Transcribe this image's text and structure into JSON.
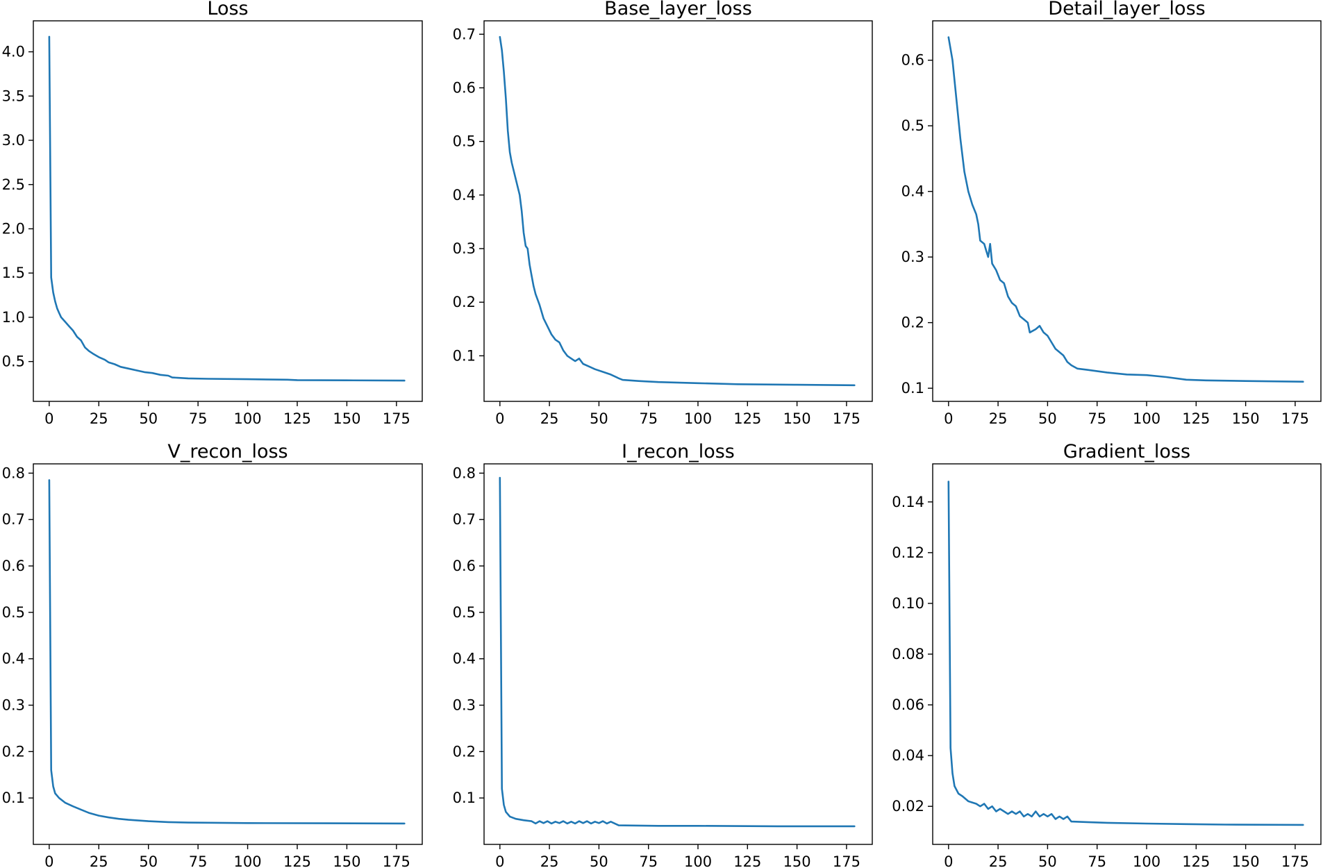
{
  "colors": {
    "line": "#1f77b4",
    "axes": "#000000",
    "background": "#ffffff"
  },
  "chart_data": [
    {
      "type": "line",
      "title": "Loss",
      "xlabel": "",
      "ylabel": "",
      "xlim": [
        -8,
        188
      ],
      "ylim": [
        0.05,
        4.35
      ],
      "xticks": [
        0,
        25,
        50,
        75,
        100,
        125,
        150,
        175
      ],
      "yticks": [
        0.5,
        1.0,
        1.5,
        2.0,
        2.5,
        3.0,
        3.5,
        4.0
      ],
      "ytick_labels": [
        "0.5",
        "1.0",
        "1.5",
        "2.0",
        "2.5",
        "3.0",
        "3.5",
        "4.0"
      ],
      "series": [
        {
          "name": "Loss",
          "points": [
            [
              0,
              4.17
            ],
            [
              1,
              1.45
            ],
            [
              2,
              1.28
            ],
            [
              3,
              1.18
            ],
            [
              4,
              1.1
            ],
            [
              5,
              1.05
            ],
            [
              6,
              1.0
            ],
            [
              8,
              0.95
            ],
            [
              10,
              0.9
            ],
            [
              12,
              0.85
            ],
            [
              14,
              0.78
            ],
            [
              16,
              0.74
            ],
            [
              18,
              0.66
            ],
            [
              20,
              0.62
            ],
            [
              22,
              0.59
            ],
            [
              25,
              0.55
            ],
            [
              28,
              0.52
            ],
            [
              30,
              0.49
            ],
            [
              33,
              0.47
            ],
            [
              36,
              0.44
            ],
            [
              40,
              0.42
            ],
            [
              44,
              0.4
            ],
            [
              48,
              0.38
            ],
            [
              52,
              0.37
            ],
            [
              56,
              0.35
            ],
            [
              60,
              0.34
            ],
            [
              62,
              0.32
            ],
            [
              70,
              0.31
            ],
            [
              80,
              0.305
            ],
            [
              100,
              0.3
            ],
            [
              120,
              0.295
            ],
            [
              125,
              0.29
            ],
            [
              150,
              0.288
            ],
            [
              179,
              0.285
            ]
          ]
        }
      ]
    },
    {
      "type": "line",
      "title": "Base_layer_loss",
      "xlabel": "",
      "ylabel": "",
      "xlim": [
        -8,
        188
      ],
      "ylim": [
        0.015,
        0.725
      ],
      "xticks": [
        0,
        25,
        50,
        75,
        100,
        125,
        150,
        175
      ],
      "yticks": [
        0.1,
        0.2,
        0.3,
        0.4,
        0.5,
        0.6,
        0.7
      ],
      "ytick_labels": [
        "0.1",
        "0.2",
        "0.3",
        "0.4",
        "0.5",
        "0.6",
        "0.7"
      ],
      "series": [
        {
          "name": "Base_layer_loss",
          "points": [
            [
              0,
              0.695
            ],
            [
              1,
              0.67
            ],
            [
              2,
              0.63
            ],
            [
              3,
              0.58
            ],
            [
              4,
              0.52
            ],
            [
              5,
              0.48
            ],
            [
              6,
              0.46
            ],
            [
              8,
              0.43
            ],
            [
              10,
              0.4
            ],
            [
              11,
              0.37
            ],
            [
              12,
              0.33
            ],
            [
              13,
              0.305
            ],
            [
              14,
              0.3
            ],
            [
              15,
              0.27
            ],
            [
              16,
              0.25
            ],
            [
              17,
              0.23
            ],
            [
              18,
              0.215
            ],
            [
              20,
              0.195
            ],
            [
              22,
              0.17
            ],
            [
              24,
              0.155
            ],
            [
              26,
              0.14
            ],
            [
              28,
              0.13
            ],
            [
              30,
              0.125
            ],
            [
              32,
              0.11
            ],
            [
              34,
              0.1
            ],
            [
              36,
              0.095
            ],
            [
              38,
              0.09
            ],
            [
              40,
              0.095
            ],
            [
              42,
              0.085
            ],
            [
              45,
              0.08
            ],
            [
              48,
              0.075
            ],
            [
              52,
              0.07
            ],
            [
              56,
              0.065
            ],
            [
              60,
              0.058
            ],
            [
              62,
              0.055
            ],
            [
              70,
              0.053
            ],
            [
              80,
              0.051
            ],
            [
              100,
              0.049
            ],
            [
              120,
              0.047
            ],
            [
              150,
              0.046
            ],
            [
              179,
              0.045
            ]
          ]
        }
      ]
    },
    {
      "type": "line",
      "title": "Detail_layer_loss",
      "xlabel": "",
      "ylabel": "",
      "xlim": [
        -8,
        188
      ],
      "ylim": [
        0.08,
        0.66
      ],
      "xticks": [
        0,
        25,
        50,
        75,
        100,
        125,
        150,
        175
      ],
      "yticks": [
        0.1,
        0.2,
        0.3,
        0.4,
        0.5,
        0.6
      ],
      "ytick_labels": [
        "0.1",
        "0.2",
        "0.3",
        "0.4",
        "0.5",
        "0.6"
      ],
      "series": [
        {
          "name": "Detail_layer_loss",
          "points": [
            [
              0,
              0.635
            ],
            [
              2,
              0.6
            ],
            [
              4,
              0.54
            ],
            [
              6,
              0.48
            ],
            [
              8,
              0.43
            ],
            [
              10,
              0.4
            ],
            [
              12,
              0.38
            ],
            [
              14,
              0.365
            ],
            [
              15,
              0.35
            ],
            [
              16,
              0.325
            ],
            [
              18,
              0.32
            ],
            [
              19,
              0.31
            ],
            [
              20,
              0.3
            ],
            [
              21,
              0.32
            ],
            [
              22,
              0.29
            ],
            [
              24,
              0.28
            ],
            [
              26,
              0.265
            ],
            [
              28,
              0.26
            ],
            [
              30,
              0.24
            ],
            [
              32,
              0.23
            ],
            [
              34,
              0.225
            ],
            [
              36,
              0.21
            ],
            [
              38,
              0.205
            ],
            [
              40,
              0.2
            ],
            [
              41,
              0.185
            ],
            [
              44,
              0.19
            ],
            [
              46,
              0.195
            ],
            [
              48,
              0.185
            ],
            [
              50,
              0.18
            ],
            [
              52,
              0.17
            ],
            [
              54,
              0.16
            ],
            [
              56,
              0.155
            ],
            [
              58,
              0.15
            ],
            [
              60,
              0.14
            ],
            [
              62,
              0.135
            ],
            [
              65,
              0.13
            ],
            [
              70,
              0.128
            ],
            [
              80,
              0.124
            ],
            [
              90,
              0.121
            ],
            [
              100,
              0.12
            ],
            [
              110,
              0.117
            ],
            [
              120,
              0.113
            ],
            [
              130,
              0.112
            ],
            [
              150,
              0.111
            ],
            [
              179,
              0.11
            ]
          ]
        }
      ]
    },
    {
      "type": "line",
      "title": "V_recon_loss",
      "xlabel": "",
      "ylabel": "",
      "xlim": [
        -8,
        188
      ],
      "ylim": [
        0.0,
        0.82
      ],
      "xticks": [
        0,
        25,
        50,
        75,
        100,
        125,
        150,
        175
      ],
      "yticks": [
        0.1,
        0.2,
        0.3,
        0.4,
        0.5,
        0.6,
        0.7,
        0.8
      ],
      "ytick_labels": [
        "0.1",
        "0.2",
        "0.3",
        "0.4",
        "0.5",
        "0.6",
        "0.7",
        "0.8"
      ],
      "series": [
        {
          "name": "V_recon_loss",
          "points": [
            [
              0,
              0.785
            ],
            [
              1,
              0.16
            ],
            [
              2,
              0.125
            ],
            [
              3,
              0.11
            ],
            [
              5,
              0.1
            ],
            [
              8,
              0.09
            ],
            [
              12,
              0.082
            ],
            [
              16,
              0.075
            ],
            [
              20,
              0.068
            ],
            [
              25,
              0.062
            ],
            [
              30,
              0.058
            ],
            [
              35,
              0.055
            ],
            [
              40,
              0.053
            ],
            [
              50,
              0.05
            ],
            [
              60,
              0.048
            ],
            [
              70,
              0.047
            ],
            [
              100,
              0.046
            ],
            [
              140,
              0.0455
            ],
            [
              179,
              0.045
            ]
          ]
        }
      ]
    },
    {
      "type": "line",
      "title": "I_recon_loss",
      "xlabel": "",
      "ylabel": "",
      "xlim": [
        -8,
        188
      ],
      "ylim": [
        0.0,
        0.82
      ],
      "xticks": [
        0,
        25,
        50,
        75,
        100,
        125,
        150,
        175
      ],
      "yticks": [
        0.1,
        0.2,
        0.3,
        0.4,
        0.5,
        0.6,
        0.7,
        0.8
      ],
      "ytick_labels": [
        "0.1",
        "0.2",
        "0.3",
        "0.4",
        "0.5",
        "0.6",
        "0.7",
        "0.8"
      ],
      "series": [
        {
          "name": "I_recon_loss",
          "points": [
            [
              0,
              0.79
            ],
            [
              1,
              0.12
            ],
            [
              2,
              0.085
            ],
            [
              3,
              0.07
            ],
            [
              5,
              0.06
            ],
            [
              8,
              0.055
            ],
            [
              12,
              0.052
            ],
            [
              16,
              0.05
            ],
            [
              18,
              0.045
            ],
            [
              20,
              0.05
            ],
            [
              22,
              0.046
            ],
            [
              24,
              0.05
            ],
            [
              26,
              0.045
            ],
            [
              28,
              0.049
            ],
            [
              30,
              0.046
            ],
            [
              32,
              0.05
            ],
            [
              34,
              0.045
            ],
            [
              36,
              0.049
            ],
            [
              38,
              0.045
            ],
            [
              40,
              0.05
            ],
            [
              42,
              0.046
            ],
            [
              44,
              0.05
            ],
            [
              46,
              0.045
            ],
            [
              48,
              0.049
            ],
            [
              50,
              0.046
            ],
            [
              52,
              0.05
            ],
            [
              54,
              0.045
            ],
            [
              56,
              0.049
            ],
            [
              58,
              0.045
            ],
            [
              60,
              0.041
            ],
            [
              80,
              0.04
            ],
            [
              100,
              0.04
            ],
            [
              140,
              0.039
            ],
            [
              179,
              0.039
            ]
          ]
        }
      ]
    },
    {
      "type": "line",
      "title": "Gradient_loss",
      "xlabel": "",
      "ylabel": "",
      "xlim": [
        -8,
        188
      ],
      "ylim": [
        0.005,
        0.155
      ],
      "xticks": [
        0,
        25,
        50,
        75,
        100,
        125,
        150,
        175
      ],
      "yticks": [
        0.02,
        0.04,
        0.06,
        0.08,
        0.1,
        0.12,
        0.14
      ],
      "ytick_labels": [
        "0.02",
        "0.04",
        "0.06",
        "0.08",
        "0.10",
        "0.12",
        "0.14"
      ],
      "series": [
        {
          "name": "Gradient_loss",
          "points": [
            [
              0,
              0.148
            ],
            [
              1,
              0.043
            ],
            [
              2,
              0.033
            ],
            [
              3,
              0.028
            ],
            [
              5,
              0.025
            ],
            [
              7,
              0.024
            ],
            [
              10,
              0.022
            ],
            [
              14,
              0.021
            ],
            [
              16,
              0.02
            ],
            [
              18,
              0.021
            ],
            [
              20,
              0.019
            ],
            [
              22,
              0.02
            ],
            [
              24,
              0.018
            ],
            [
              26,
              0.019
            ],
            [
              28,
              0.018
            ],
            [
              30,
              0.017
            ],
            [
              32,
              0.018
            ],
            [
              34,
              0.017
            ],
            [
              36,
              0.018
            ],
            [
              38,
              0.016
            ],
            [
              40,
              0.017
            ],
            [
              42,
              0.016
            ],
            [
              44,
              0.018
            ],
            [
              46,
              0.016
            ],
            [
              48,
              0.017
            ],
            [
              50,
              0.016
            ],
            [
              52,
              0.017
            ],
            [
              54,
              0.015
            ],
            [
              56,
              0.016
            ],
            [
              58,
              0.015
            ],
            [
              60,
              0.016
            ],
            [
              62,
              0.014
            ],
            [
              70,
              0.0138
            ],
            [
              80,
              0.0135
            ],
            [
              100,
              0.0132
            ],
            [
              120,
              0.013
            ],
            [
              140,
              0.0128
            ],
            [
              179,
              0.0127
            ]
          ]
        }
      ]
    }
  ]
}
